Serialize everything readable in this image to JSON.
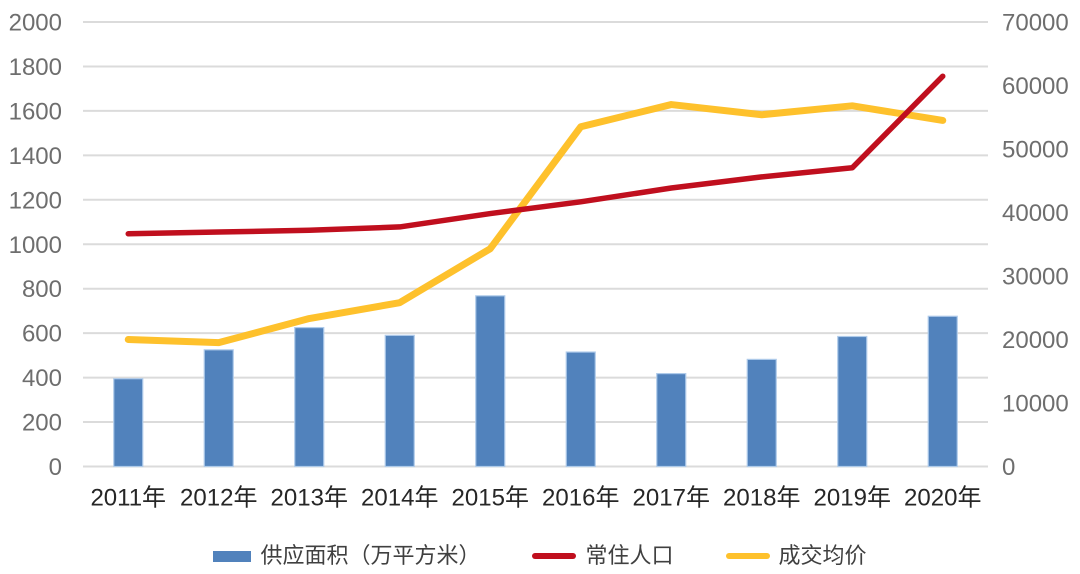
{
  "chart_data": {
    "type": "combo",
    "categories": [
      "2011年",
      "2012年",
      "2013年",
      "2014年",
      "2015年",
      "2016年",
      "2017年",
      "2018年",
      "2019年",
      "2020年"
    ],
    "series": [
      {
        "name": "供应面积（万平方米）",
        "type": "bar",
        "axis": "left",
        "color": "#5182BC",
        "values": [
          395,
          525,
          625,
          590,
          768,
          515,
          418,
          482,
          585,
          676
        ]
      },
      {
        "name": "常住人口",
        "type": "line",
        "axis": "left",
        "color": "#C00F1E",
        "values": [
          1047,
          1055,
          1063,
          1078,
          1138,
          1191,
          1253,
          1303,
          1344,
          1756
        ]
      },
      {
        "name": "成交均价",
        "type": "line",
        "axis": "right",
        "color": "#FEC12C",
        "values": [
          20000,
          19500,
          23300,
          25800,
          34300,
          53500,
          57000,
          55400,
          56800,
          54500
        ]
      }
    ],
    "left_axis": {
      "min": 0,
      "max": 2000,
      "step": 200,
      "tick_labels": [
        "0",
        "200",
        "400",
        "600",
        "800",
        "1000",
        "1200",
        "1400",
        "1600",
        "1800",
        "2000"
      ]
    },
    "right_axis": {
      "min": 0,
      "max": 70000,
      "step": 10000,
      "tick_labels": [
        "0",
        "10000",
        "20000",
        "30000",
        "40000",
        "50000",
        "60000",
        "70000"
      ]
    },
    "grid": true,
    "legend_position": "bottom",
    "line_z_order_top": "常住人口"
  },
  "colors": {
    "grid": "#DBDBDB",
    "tick_label": "#6E6E6E",
    "x_label": "#262626",
    "bar_border": "#AFCBEA",
    "background": "#FFFFFF",
    "legend_text": "#404040"
  }
}
